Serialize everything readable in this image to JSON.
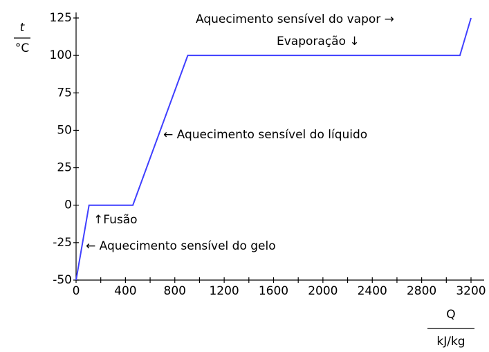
{
  "chart_data": {
    "type": "line",
    "x": [
      0,
      105,
      460,
      905,
      3110,
      3200
    ],
    "series": [
      {
        "color": "#3f3fff",
        "values": [
          -50,
          0,
          0,
          100,
          100,
          125
        ]
      }
    ],
    "xlim": [
      0,
      3200
    ],
    "xticks": [
      0,
      400,
      800,
      1200,
      1600,
      2000,
      2400,
      2800,
      3200
    ],
    "xticks_minor": [
      200,
      600,
      1000,
      1400,
      1800,
      2200,
      2600,
      3000
    ],
    "ylim": [
      -50,
      125
    ],
    "yticks": [
      -50,
      -25,
      0,
      25,
      50,
      75,
      100,
      125
    ],
    "xlabel": {
      "top": "Q",
      "bottom": "kJ/kg"
    },
    "ylabel": {
      "top": "t",
      "bottom": "°C"
    },
    "annotations": [
      "Aquecimento sensível do vapor →",
      "Evaporação ↓",
      "← Aquecimento sensível do líquido",
      "↑Fusão",
      "← Aquecimento sensível do gelo"
    ]
  }
}
